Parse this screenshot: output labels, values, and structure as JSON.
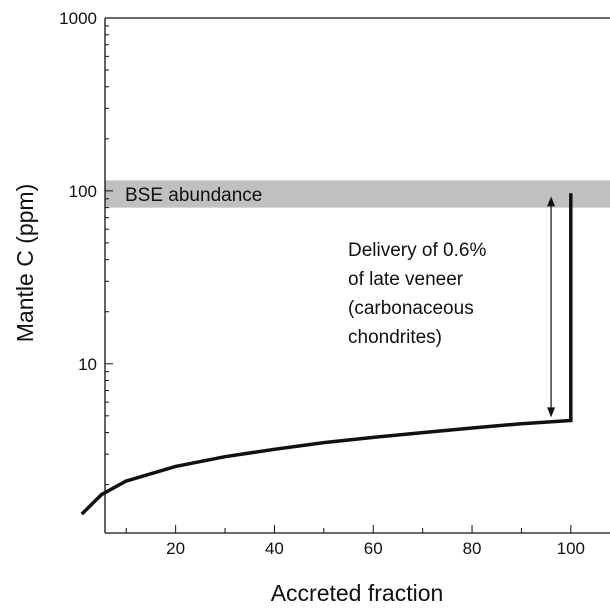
{
  "chart_data": {
    "type": "line",
    "xlabel": "Accreted fraction",
    "ylabel": "Mantle C (ppm)",
    "x_scale": "linear",
    "y_scale": "log",
    "xlim": [
      0,
      110
    ],
    "ylim": [
      1.05,
      1000
    ],
    "x_ticks": [
      20,
      40,
      60,
      80,
      100
    ],
    "x_tick_labels": [
      "20",
      "40",
      "60",
      "80",
      "100"
    ],
    "y_ticks": [
      10,
      100,
      1000
    ],
    "y_tick_labels": [
      "10",
      "100",
      "1000"
    ],
    "grid": false,
    "series": [
      {
        "points": [
          {
            "x": 1,
            "y": 1.35
          },
          {
            "x": 5,
            "y": 1.75
          },
          {
            "x": 10,
            "y": 2.1
          },
          {
            "x": 20,
            "y": 2.55
          },
          {
            "x": 30,
            "y": 2.9
          },
          {
            "x": 40,
            "y": 3.2
          },
          {
            "x": 50,
            "y": 3.5
          },
          {
            "x": 60,
            "y": 3.75
          },
          {
            "x": 70,
            "y": 4.0
          },
          {
            "x": 80,
            "y": 4.25
          },
          {
            "x": 90,
            "y": 4.5
          },
          {
            "x": 100,
            "y": 4.7
          },
          {
            "x": 100,
            "y": 97
          }
        ]
      }
    ],
    "band": {
      "label": "BSE abundance",
      "y_range": [
        80,
        115
      ],
      "color": "#c0c0c0"
    },
    "annotation": {
      "lines": [
        "Delivery of 0.6%",
        "of late veneer",
        "(carbonaceous",
        "chondrites)"
      ],
      "arrow_x": 96,
      "arrow_y_range": [
        4.9,
        93
      ]
    }
  }
}
